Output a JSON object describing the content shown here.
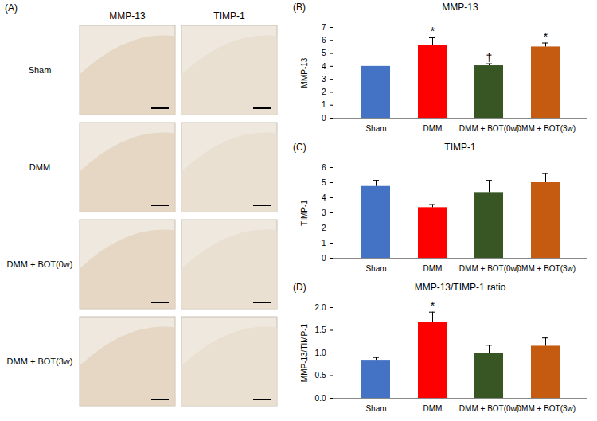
{
  "image_panel": {
    "panel_label": "(A)",
    "columns": [
      "MMP-13",
      "TIMP-1"
    ],
    "rows": [
      "Sham",
      "DMM",
      "DMM + BOT(0w)",
      "DMM + BOT(3w)"
    ]
  },
  "chart_data": [
    {
      "type": "bar",
      "panel_label": "(B)",
      "title": "MMP-13",
      "y_label": "MMP-13",
      "categories": [
        "Sham",
        "DMM",
        "DMM + BOT(0w)",
        "DMM + BOT(3w)"
      ],
      "values": [
        4.0,
        5.6,
        4.05,
        5.5
      ],
      "errors": [
        0,
        0.6,
        0.15,
        0.3
      ],
      "colors": [
        "#4472c4",
        "#ff0000",
        "#375623",
        "#c55a11"
      ],
      "ylim": [
        0,
        7
      ],
      "yticks": [
        0,
        1,
        2,
        3,
        4,
        5,
        6,
        7
      ],
      "annotations": [
        {
          "category": "DMM",
          "text": "*"
        },
        {
          "category": "DMM + BOT(0w)",
          "text": "†"
        },
        {
          "category": "DMM + BOT(3w)",
          "text": "*"
        }
      ]
    },
    {
      "type": "bar",
      "panel_label": "(C)",
      "title": "TIMP-1",
      "y_label": "TIMP-1",
      "categories": [
        "Sham",
        "DMM",
        "DMM + BOT(0w)",
        "DMM + BOT(3w)"
      ],
      "values": [
        4.75,
        3.35,
        4.35,
        5.0
      ],
      "errors": [
        0.4,
        0.2,
        0.8,
        0.6
      ],
      "colors": [
        "#4472c4",
        "#ff0000",
        "#375623",
        "#c55a11"
      ],
      "ylim": [
        0,
        6
      ],
      "yticks": [
        0,
        1,
        2,
        3,
        4,
        5,
        6
      ],
      "annotations": []
    },
    {
      "type": "bar",
      "panel_label": "(D)",
      "title": "MMP-13/TIMP-1 ratio",
      "y_label": "MMP-13/TIMP-1",
      "categories": [
        "Sham",
        "DMM",
        "DMM + BOT(0w)",
        "DMM + BOT(3w)"
      ],
      "values": [
        0.84,
        1.68,
        1.0,
        1.15
      ],
      "errors": [
        0.06,
        0.22,
        0.17,
        0.18
      ],
      "colors": [
        "#4472c4",
        "#ff0000",
        "#375623",
        "#c55a11"
      ],
      "ylim": [
        0,
        2
      ],
      "yticks": [
        {
          "value": 0,
          "label": "0.0"
        },
        {
          "value": 0.5,
          "label": "0.5"
        },
        {
          "value": 1,
          "label": "1.0"
        },
        {
          "value": 1.5,
          "label": "1.5"
        },
        {
          "value": 2,
          "label": "2.0"
        }
      ],
      "annotations": [
        {
          "category": "DMM",
          "text": "*"
        }
      ]
    }
  ]
}
